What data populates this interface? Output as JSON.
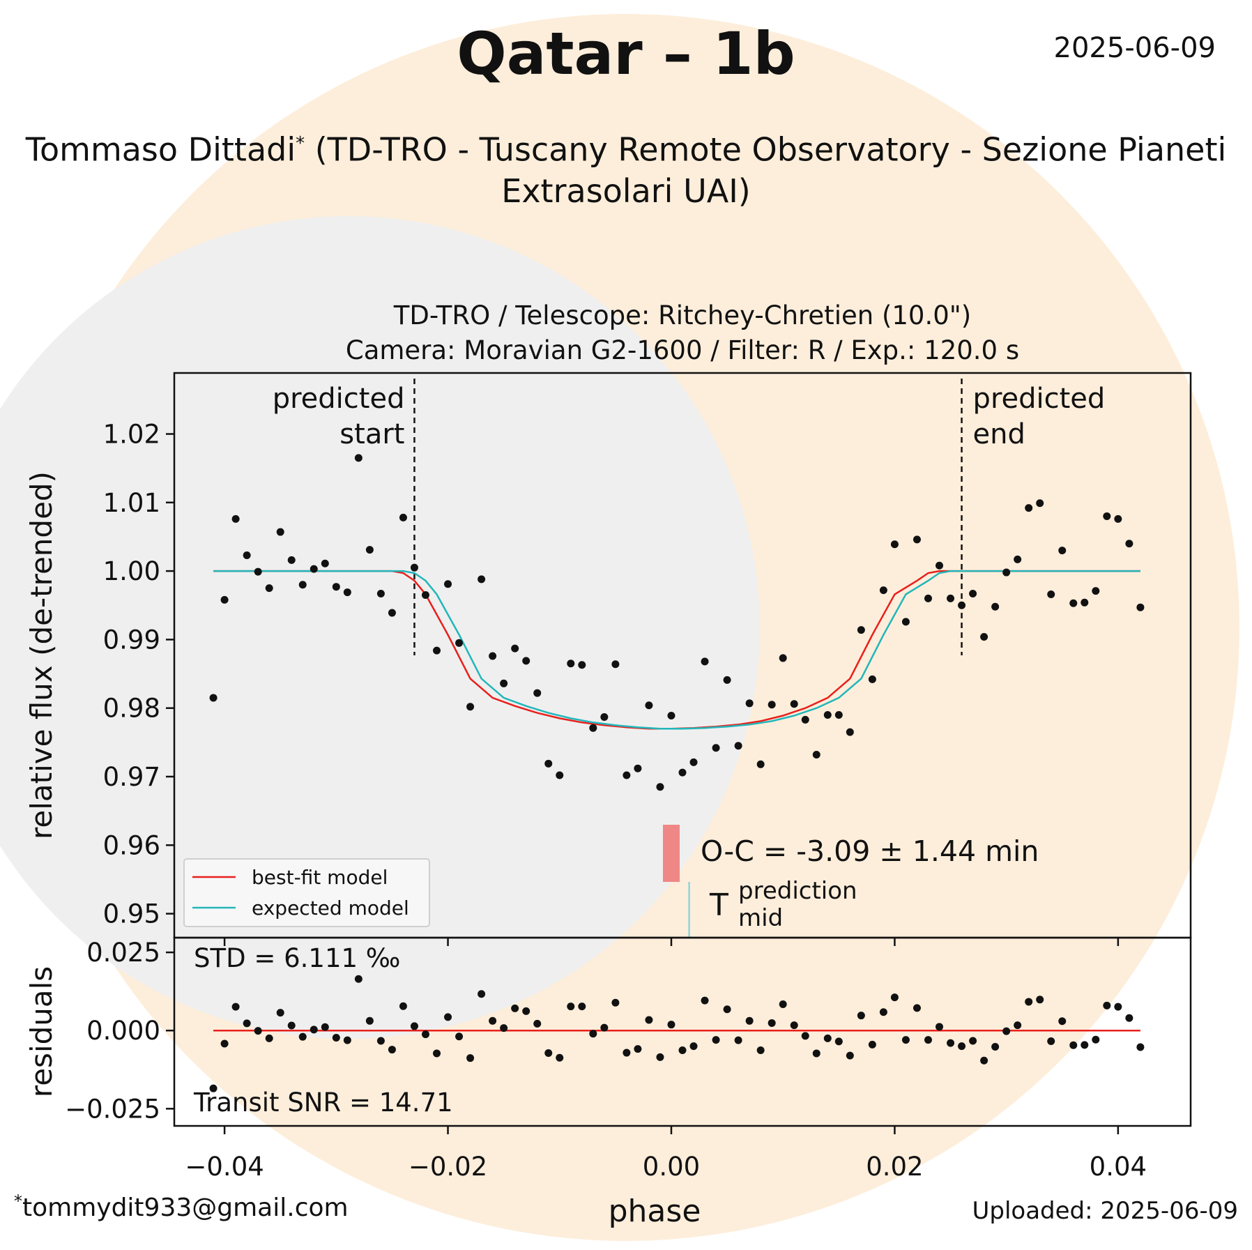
{
  "header": {
    "title": "Qatar – 1b",
    "date": "2025-06-09",
    "observer_name": "Tommaso Dittadi",
    "observer_mark": "*",
    "observer_org": "(TD-TRO - Tuscany Remote Observatory - Sezione Pianeti Extrasolari UAI)"
  },
  "footer": {
    "email_mark": "*",
    "email": "tommydit933@gmail.com",
    "uploaded": "Uploaded: 2025-06-09"
  },
  "colors": {
    "background_circle": "#fdeedb",
    "plot_gray": "#efefef",
    "best_fit": "#e8201c",
    "expected": "#22b6ba",
    "oc_bar": "#ef8786",
    "mid_line": "#8ed6d8"
  },
  "chart_data": [
    {
      "type": "scatter",
      "title": "TD-TRO / Telescope: Ritchey-Chretien (10.0\")",
      "subtitle": "Camera: Moravian G2-1600 / Filter: R / Exp.: 120.0 s",
      "xlabel": "",
      "ylabel": "relative flux (de-trended)",
      "xlim": [
        -0.0445,
        0.0465
      ],
      "ylim": [
        0.9465,
        1.0289
      ],
      "yticks": [
        0.95,
        0.96,
        0.97,
        0.98,
        0.99,
        1.0,
        1.01,
        1.02
      ],
      "ytick_labels": [
        "0.95",
        "0.96",
        "0.97",
        "0.98",
        "0.99",
        "1.00",
        "1.01",
        "1.02"
      ],
      "annotations": {
        "predicted_start": {
          "x": -0.023,
          "label_line1": "predicted",
          "label_line2": "start"
        },
        "predicted_end": {
          "x": 0.026,
          "label_line1": "predicted",
          "label_line2": "end"
        },
        "oc_text": "O-C = -3.09 ± 1.44 min",
        "prediction_T": "T",
        "prediction_sup": "prediction",
        "prediction_sub": "mid",
        "observed_mid_x": 0.0,
        "predicted_mid_x": 0.0016
      },
      "legend": {
        "position": "lower-left",
        "entries": [
          {
            "label": "best-fit model",
            "color": "#e8201c"
          },
          {
            "label": "expected model",
            "color": "#22b6ba"
          }
        ]
      },
      "series": [
        {
          "type": "scatter",
          "color": "#111111",
          "points": [
            [
              -0.041,
              0.9815
            ],
            [
              -0.04,
              0.9958
            ],
            [
              -0.039,
              1.0076
            ],
            [
              -0.038,
              1.0023
            ],
            [
              -0.037,
              0.9999
            ],
            [
              -0.036,
              0.9975
            ],
            [
              -0.035,
              1.0057
            ],
            [
              -0.034,
              1.0016
            ],
            [
              -0.033,
              0.998
            ],
            [
              -0.032,
              1.0003
            ],
            [
              -0.031,
              1.0011
            ],
            [
              -0.03,
              0.9977
            ],
            [
              -0.029,
              0.9969
            ],
            [
              -0.028,
              1.0165
            ],
            [
              -0.027,
              1.0031
            ],
            [
              -0.026,
              0.9967
            ],
            [
              -0.025,
              0.9939
            ],
            [
              -0.024,
              1.0078
            ],
            [
              -0.023,
              1.0005
            ],
            [
              -0.022,
              0.9965
            ],
            [
              -0.021,
              0.9884
            ],
            [
              -0.02,
              0.9981
            ],
            [
              -0.019,
              0.9895
            ],
            [
              -0.018,
              0.9802
            ],
            [
              -0.017,
              0.9988
            ],
            [
              -0.016,
              0.9876
            ],
            [
              -0.015,
              0.9836
            ],
            [
              -0.014,
              0.9887
            ],
            [
              -0.013,
              0.9869
            ],
            [
              -0.012,
              0.9822
            ],
            [
              -0.011,
              0.9719
            ],
            [
              -0.01,
              0.9702
            ],
            [
              -0.009,
              0.9865
            ],
            [
              -0.008,
              0.9863
            ],
            [
              -0.007,
              0.9771
            ],
            [
              -0.006,
              0.9787
            ],
            [
              -0.005,
              0.9864
            ],
            [
              -0.004,
              0.9702
            ],
            [
              -0.003,
              0.9712
            ],
            [
              -0.002,
              0.9804
            ],
            [
              -0.001,
              0.9685
            ],
            [
              0.0,
              0.9789
            ],
            [
              0.001,
              0.9706
            ],
            [
              0.002,
              0.9721
            ],
            [
              0.003,
              0.9868
            ],
            [
              0.004,
              0.9742
            ],
            [
              0.005,
              0.9841
            ],
            [
              0.006,
              0.9745
            ],
            [
              0.007,
              0.9807
            ],
            [
              0.008,
              0.9718
            ],
            [
              0.009,
              0.9805
            ],
            [
              0.01,
              0.9873
            ],
            [
              0.011,
              0.9806
            ],
            [
              0.012,
              0.9783
            ],
            [
              0.013,
              0.9732
            ],
            [
              0.014,
              0.979
            ],
            [
              0.015,
              0.979
            ],
            [
              0.016,
              0.9765
            ],
            [
              0.017,
              0.9914
            ],
            [
              0.018,
              0.9842
            ],
            [
              0.019,
              0.9972
            ],
            [
              0.02,
              1.0039
            ],
            [
              0.021,
              0.9926
            ],
            [
              0.022,
              1.0046
            ],
            [
              0.023,
              0.996
            ],
            [
              0.024,
              1.0008
            ],
            [
              0.025,
              0.996
            ],
            [
              0.026,
              0.995
            ],
            [
              0.027,
              0.9967
            ],
            [
              0.028,
              0.9904
            ],
            [
              0.029,
              0.9948
            ],
            [
              0.03,
              0.9998
            ],
            [
              0.031,
              1.0017
            ],
            [
              0.032,
              1.0092
            ],
            [
              0.033,
              1.0099
            ],
            [
              0.034,
              0.9966
            ],
            [
              0.035,
              1.003
            ],
            [
              0.036,
              0.9953
            ],
            [
              0.037,
              0.9954
            ],
            [
              0.038,
              0.9971
            ],
            [
              0.039,
              1.008
            ],
            [
              0.04,
              1.0076
            ],
            [
              0.041,
              1.004
            ],
            [
              0.042,
              0.9947
            ]
          ]
        },
        {
          "name": "best-fit model",
          "type": "line",
          "color": "#e8201c",
          "x": [
            -0.041,
            -0.025,
            -0.024,
            -0.023,
            -0.022,
            -0.02,
            -0.018,
            -0.016,
            -0.014,
            -0.012,
            -0.01,
            -0.008,
            -0.006,
            -0.004,
            -0.002,
            0.0,
            0.002,
            0.004,
            0.006,
            0.008,
            0.01,
            0.012,
            0.014,
            0.016,
            0.018,
            0.02,
            0.022,
            0.023,
            0.024,
            0.025,
            0.042
          ],
          "y": [
            1.0,
            1.0,
            0.9997,
            0.9986,
            0.9966,
            0.9907,
            0.9843,
            0.9815,
            0.9803,
            0.9793,
            0.9785,
            0.9779,
            0.9775,
            0.9772,
            0.977,
            0.977,
            0.9771,
            0.9773,
            0.9776,
            0.9781,
            0.9789,
            0.98,
            0.9815,
            0.9843,
            0.9907,
            0.9966,
            0.9986,
            0.9997,
            1.0,
            1.0,
            1.0
          ]
        },
        {
          "name": "expected model",
          "type": "line",
          "color": "#22b6ba",
          "x": [
            -0.041,
            -0.024,
            -0.023,
            -0.022,
            -0.021,
            -0.019,
            -0.017,
            -0.015,
            -0.013,
            -0.011,
            -0.009,
            -0.007,
            -0.005,
            -0.003,
            -0.001,
            0.001,
            0.003,
            0.005,
            0.007,
            0.009,
            0.011,
            0.013,
            0.015,
            0.017,
            0.019,
            0.021,
            0.023,
            0.024,
            0.025,
            0.026,
            0.042
          ],
          "y": [
            1.0,
            1.0,
            0.9997,
            0.9986,
            0.9966,
            0.9907,
            0.9843,
            0.9815,
            0.9803,
            0.9793,
            0.9785,
            0.9779,
            0.9775,
            0.9772,
            0.977,
            0.977,
            0.9771,
            0.9773,
            0.9776,
            0.9781,
            0.9789,
            0.98,
            0.9815,
            0.9843,
            0.9907,
            0.9966,
            0.9986,
            0.9997,
            1.0,
            1.0,
            1.0
          ]
        }
      ]
    },
    {
      "type": "scatter",
      "title": "",
      "xlabel": "phase",
      "ylabel": "residuals",
      "xlim": [
        -0.0445,
        0.0465
      ],
      "ylim": [
        -0.0305,
        0.0297
      ],
      "xticks": [
        -0.04,
        -0.02,
        0.0,
        0.02,
        0.04
      ],
      "xtick_labels": [
        "−0.04",
        "−0.02",
        "0.00",
        "0.02",
        "0.04"
      ],
      "yticks": [
        0.025,
        0.0,
        -0.025
      ],
      "ytick_labels": [
        "0.025",
        "0.000",
        "−0.025"
      ],
      "annotations": {
        "std_text": "STD = 6.111 ‰",
        "snr_text": "Transit SNR = 14.71"
      },
      "zero_line_color": "#e8201c",
      "series": [
        {
          "type": "scatter",
          "color": "#111111",
          "points": [
            [
              -0.041,
              -0.0185
            ],
            [
              -0.04,
              -0.0042
            ],
            [
              -0.039,
              0.0076
            ],
            [
              -0.038,
              0.0023
            ],
            [
              -0.037,
              -0.0001
            ],
            [
              -0.036,
              -0.0025
            ],
            [
              -0.035,
              0.0057
            ],
            [
              -0.034,
              0.0016
            ],
            [
              -0.033,
              -0.002
            ],
            [
              -0.032,
              0.0003
            ],
            [
              -0.031,
              0.0011
            ],
            [
              -0.03,
              -0.0023
            ],
            [
              -0.029,
              -0.0031
            ],
            [
              -0.028,
              0.0165
            ],
            [
              -0.027,
              0.0031
            ],
            [
              -0.026,
              -0.0033
            ],
            [
              -0.025,
              -0.0061
            ],
            [
              -0.024,
              0.0078
            ],
            [
              -0.023,
              0.0014
            ],
            [
              -0.022,
              -0.0012
            ],
            [
              -0.021,
              -0.0073
            ],
            [
              -0.02,
              0.0043
            ],
            [
              -0.019,
              -0.0019
            ],
            [
              -0.018,
              -0.0088
            ],
            [
              -0.017,
              0.0117
            ],
            [
              -0.016,
              0.0031
            ],
            [
              -0.015,
              0.0008
            ],
            [
              -0.014,
              0.0071
            ],
            [
              -0.013,
              0.0062
            ],
            [
              -0.012,
              0.0022
            ],
            [
              -0.011,
              -0.0072
            ],
            [
              -0.01,
              -0.0087
            ],
            [
              -0.009,
              0.0077
            ],
            [
              -0.008,
              0.0077
            ],
            [
              -0.007,
              -0.001
            ],
            [
              -0.006,
              0.0009
            ],
            [
              -0.005,
              0.0089
            ],
            [
              -0.004,
              -0.0071
            ],
            [
              -0.003,
              -0.0059
            ],
            [
              -0.002,
              0.0034
            ],
            [
              -0.001,
              -0.0085
            ],
            [
              0.0,
              0.0019
            ],
            [
              0.001,
              -0.0063
            ],
            [
              0.002,
              -0.005
            ],
            [
              0.003,
              0.0096
            ],
            [
              0.004,
              -0.003
            ],
            [
              0.005,
              0.0068
            ],
            [
              0.006,
              -0.0031
            ],
            [
              0.007,
              0.0031
            ],
            [
              0.008,
              -0.0063
            ],
            [
              0.009,
              0.0024
            ],
            [
              0.01,
              0.0084
            ],
            [
              0.011,
              0.0017
            ],
            [
              0.012,
              -0.0017
            ],
            [
              0.013,
              -0.0073
            ],
            [
              0.014,
              -0.0025
            ],
            [
              0.015,
              -0.0035
            ],
            [
              0.016,
              -0.008
            ],
            [
              0.017,
              0.0048
            ],
            [
              0.018,
              -0.0045
            ],
            [
              0.019,
              0.0059
            ],
            [
              0.02,
              0.0106
            ],
            [
              0.021,
              -0.003
            ],
            [
              0.022,
              0.0072
            ],
            [
              0.023,
              -0.003
            ],
            [
              0.024,
              0.0012
            ],
            [
              0.025,
              -0.004
            ],
            [
              0.026,
              -0.005
            ],
            [
              0.027,
              -0.0033
            ],
            [
              0.028,
              -0.0096
            ],
            [
              0.029,
              -0.0052
            ],
            [
              0.03,
              -0.0002
            ],
            [
              0.031,
              0.0017
            ],
            [
              0.032,
              0.0092
            ],
            [
              0.033,
              0.0099
            ],
            [
              0.034,
              -0.0034
            ],
            [
              0.035,
              0.003
            ],
            [
              0.036,
              -0.0047
            ],
            [
              0.037,
              -0.0046
            ],
            [
              0.038,
              -0.0029
            ],
            [
              0.039,
              0.008
            ],
            [
              0.04,
              0.0076
            ],
            [
              0.041,
              0.004
            ],
            [
              0.042,
              -0.0053
            ]
          ]
        }
      ]
    }
  ]
}
